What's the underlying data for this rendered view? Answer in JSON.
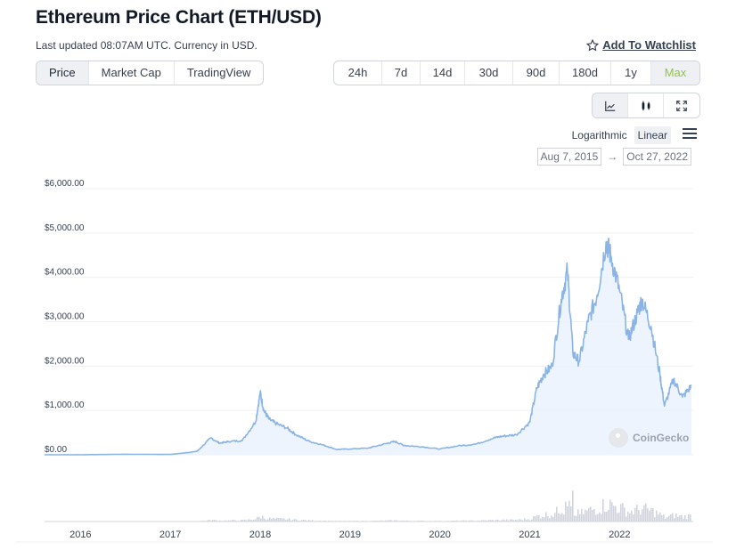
{
  "header": {
    "title": "Ethereum Price Chart (ETH/USD)",
    "updated": "Last updated 08:07AM UTC. Currency in USD.",
    "watchlist_label": "Add To Watchlist"
  },
  "mode_tabs": [
    {
      "label": "Price",
      "active": true
    },
    {
      "label": "Market Cap",
      "active": false
    },
    {
      "label": "TradingView",
      "active": false
    }
  ],
  "range_tabs": [
    {
      "label": "24h",
      "active": false
    },
    {
      "label": "7d",
      "active": false
    },
    {
      "label": "14d",
      "active": false
    },
    {
      "label": "30d",
      "active": false
    },
    {
      "label": "90d",
      "active": false
    },
    {
      "label": "180d",
      "active": false
    },
    {
      "label": "1y",
      "active": false
    },
    {
      "label": "Max",
      "active": true
    }
  ],
  "chart_tools": [
    {
      "icon": "line-chart-icon",
      "active": true
    },
    {
      "icon": "candlestick-icon",
      "active": false
    },
    {
      "icon": "fullscreen-icon",
      "active": false
    }
  ],
  "scale": {
    "logarithmic": "Logarithmic",
    "linear": "Linear",
    "active": "Linear"
  },
  "date_range": {
    "from": "Aug 7, 2015",
    "arrow": "→",
    "to": "Oct 27, 2022"
  },
  "watermark": "CoinGecko",
  "colors": {
    "line": "#8ab4e6",
    "fill": "#e8f1fc",
    "accent": "#8dc647",
    "volume": "#d1d5db"
  },
  "chart_data": {
    "type": "area",
    "title": "",
    "ylim": [
      0,
      6000
    ],
    "y_ticks": [
      {
        "value": 0,
        "label": "$0.00"
      },
      {
        "value": 1000,
        "label": "$1,000.00"
      },
      {
        "value": 2000,
        "label": "$2,000.00"
      },
      {
        "value": 3000,
        "label": "$3,000.00"
      },
      {
        "value": 4000,
        "label": "$4,000.00"
      },
      {
        "value": 5000,
        "label": "$5,000.00"
      },
      {
        "value": 6000,
        "label": "$6,000.00"
      }
    ],
    "xlim": [
      2015.6,
      2022.82
    ],
    "x_ticks": [
      {
        "value": 2016,
        "label": "2016"
      },
      {
        "value": 2017,
        "label": "2017"
      },
      {
        "value": 2018,
        "label": "2018"
      },
      {
        "value": 2019,
        "label": "2019"
      },
      {
        "value": 2020,
        "label": "2020"
      },
      {
        "value": 2021,
        "label": "2021"
      },
      {
        "value": 2022,
        "label": "2022"
      }
    ],
    "series": [
      {
        "x": [
          2015.6,
          2016.0,
          2016.5,
          2017.0,
          2017.2,
          2017.3,
          2017.45,
          2017.55,
          2017.65,
          2017.8,
          2017.95,
          2018.0,
          2018.04,
          2018.1,
          2018.18,
          2018.3,
          2018.4,
          2018.55,
          2018.7,
          2018.85,
          2019.0,
          2019.2,
          2019.4,
          2019.5,
          2019.6,
          2019.8,
          2020.0,
          2020.2,
          2020.4,
          2020.6,
          2020.7,
          2020.85,
          2021.0,
          2021.08,
          2021.15,
          2021.25,
          2021.35,
          2021.42,
          2021.48,
          2021.55,
          2021.65,
          2021.75,
          2021.85,
          2021.9,
          2022.0,
          2022.1,
          2022.2,
          2022.25,
          2022.35,
          2022.45,
          2022.5,
          2022.6,
          2022.7,
          2022.8
        ],
        "y": [
          1,
          1,
          12,
          8,
          50,
          80,
          380,
          260,
          300,
          320,
          750,
          1400,
          1000,
          800,
          700,
          600,
          450,
          300,
          220,
          120,
          130,
          150,
          250,
          300,
          210,
          180,
          130,
          200,
          240,
          380,
          420,
          450,
          730,
          1500,
          1800,
          2000,
          3500,
          4150,
          2300,
          2100,
          3000,
          3600,
          4800,
          4500,
          3700,
          2600,
          3200,
          3500,
          2900,
          1800,
          1100,
          1700,
          1300,
          1550
        ]
      }
    ]
  }
}
